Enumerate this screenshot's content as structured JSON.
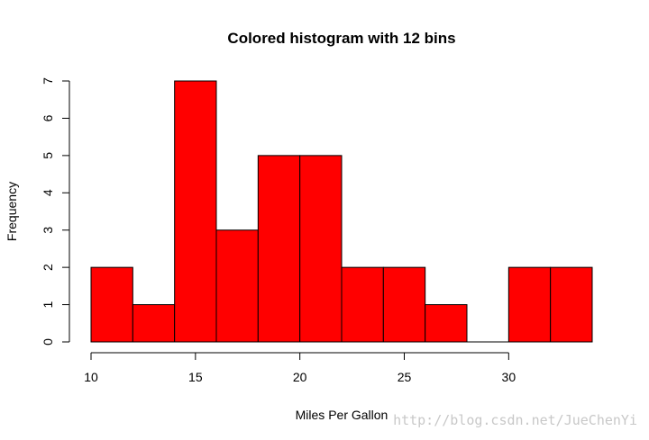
{
  "chart_data": {
    "type": "bar",
    "title": "Colored histogram with 12 bins",
    "xlabel": "Miles Per Gallon",
    "ylabel": "Frequency",
    "bin_edges": [
      10,
      12,
      14,
      16,
      18,
      20,
      22,
      24,
      26,
      28,
      30,
      32,
      34
    ],
    "values": [
      2,
      1,
      7,
      3,
      5,
      5,
      2,
      2,
      1,
      0,
      2,
      2
    ],
    "xlim": [
      10,
      34
    ],
    "ylim": [
      0,
      7
    ],
    "x_ticks": [
      10,
      15,
      20,
      25,
      30
    ],
    "y_ticks": [
      0,
      1,
      2,
      3,
      4,
      5,
      6,
      7
    ],
    "bar_color": "#ff0000",
    "grid": false
  },
  "watermark": "http://blog.csdn.net/JueChenYi"
}
